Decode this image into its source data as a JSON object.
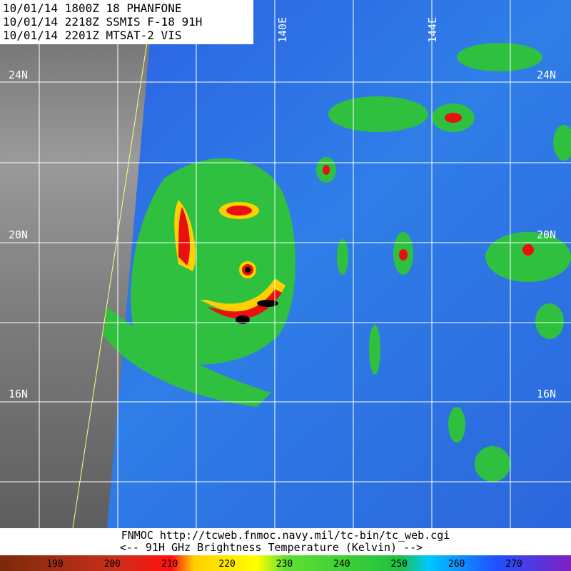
{
  "header": {
    "lines": [
      "10/01/14 1800Z  18 PHANFONE",
      "10/01/14 2218Z  SSMIS F-18 91H",
      "10/01/14 2201Z  MTSAT-2 VIS"
    ]
  },
  "longitude_labels": [
    "140E",
    "144E"
  ],
  "latitude_labels_left": [
    "24N",
    "20N",
    "16N"
  ],
  "latitude_labels_right": [
    "24N",
    "20N",
    "16N"
  ],
  "footer": {
    "source": "FNMOC  http://tcweb.fnmoc.navy.mil/tc-bin/tc_web.cgi",
    "legend_title": "<--  91H GHz Brightness Temperature (Kelvin)  -->"
  },
  "colorbar": {
    "ticks": [
      190,
      200,
      210,
      220,
      230,
      240,
      250,
      260,
      270
    ]
  }
}
